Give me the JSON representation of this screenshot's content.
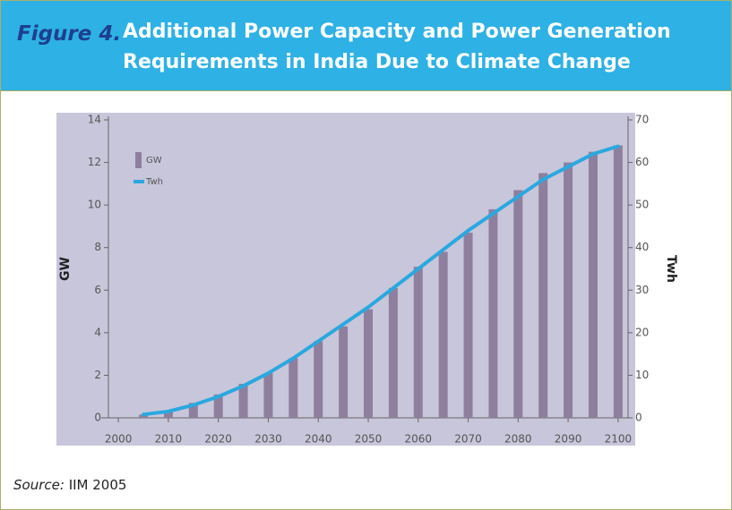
{
  "figure_label": "Figure 4.",
  "title": [
    "Additional Power Capacity and Power Generation",
    "Requirements in India Due to Climate Change"
  ],
  "source": {
    "label": "Source:",
    "text": "IIM 2005"
  },
  "chart_data": {
    "type": "bar_line",
    "x": [
      2005,
      2010,
      2015,
      2020,
      2025,
      2030,
      2035,
      2040,
      2045,
      2050,
      2055,
      2060,
      2065,
      2070,
      2075,
      2080,
      2085,
      2090,
      2095,
      2100
    ],
    "series": [
      {
        "name": "GW",
        "type": "bar",
        "color": "#8e7f9e",
        "axis": "y",
        "values": [
          0.15,
          0.3,
          0.7,
          1.1,
          1.6,
          2.1,
          2.8,
          3.6,
          4.3,
          5.1,
          6.1,
          7.1,
          7.8,
          8.7,
          9.8,
          10.7,
          11.5,
          12.0,
          12.5,
          12.8
        ]
      },
      {
        "name": "Twh",
        "type": "line",
        "color": "#2aa8e0",
        "axis": "y2",
        "values": [
          0.8,
          1.5,
          3,
          5,
          7.5,
          10.5,
          14,
          18,
          22,
          26,
          30.5,
          35,
          39.5,
          44,
          48,
          52,
          56,
          59,
          62,
          63.8
        ]
      }
    ],
    "ylabel": "GW",
    "y2label": "Twh",
    "xlim": [
      1998,
      2102
    ],
    "xticks": [
      2000,
      2010,
      2020,
      2030,
      2040,
      2050,
      2060,
      2070,
      2080,
      2090,
      2100
    ],
    "ylim": [
      0,
      14
    ],
    "yticks": [
      0,
      2,
      4,
      6,
      8,
      10,
      12,
      14
    ],
    "y2lim": [
      0,
      70
    ],
    "y2ticks": [
      0,
      10,
      20,
      30,
      40,
      50,
      60,
      70
    ],
    "legend": "upper-left"
  }
}
